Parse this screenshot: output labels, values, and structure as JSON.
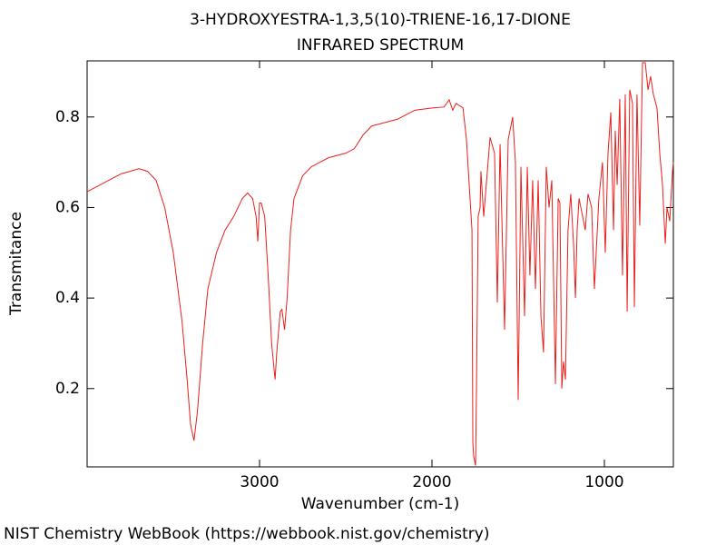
{
  "chart_data": {
    "type": "line",
    "title": "3-HYDROXYESTRA-1,3,5(10)-TRIENE-16,17-DIONE",
    "subtitle": "INFRARED SPECTRUM",
    "x_label": "Wavenumber (cm-1)",
    "y_label": "Transmitance",
    "source": "NIST Chemistry WebBook (https://webbook.nist.gov/chemistry)",
    "color": "#e8201c",
    "xlim": [
      4000,
      600
    ],
    "ylim": [
      0.027,
      0.924
    ],
    "xticks": [
      3000,
      2000,
      1000
    ],
    "yticks": [
      0.2,
      0.4,
      0.6,
      0.8
    ],
    "x": [
      4000,
      3900,
      3800,
      3750,
      3700,
      3650,
      3600,
      3550,
      3500,
      3450,
      3420,
      3400,
      3380,
      3360,
      3330,
      3300,
      3250,
      3200,
      3150,
      3100,
      3070,
      3040,
      3020,
      3010,
      3000,
      2990,
      2970,
      2950,
      2930,
      2910,
      2900,
      2880,
      2870,
      2855,
      2840,
      2820,
      2800,
      2750,
      2700,
      2600,
      2500,
      2450,
      2400,
      2350,
      2300,
      2200,
      2100,
      2000,
      1930,
      1900,
      1880,
      1860,
      1820,
      1800,
      1768,
      1763,
      1758,
      1747,
      1742,
      1732,
      1721,
      1716,
      1700,
      1663,
      1637,
      1621,
      1605,
      1579,
      1558,
      1532,
      1516,
      1500,
      1484,
      1463,
      1447,
      1432,
      1416,
      1400,
      1384,
      1368,
      1353,
      1337,
      1321,
      1305,
      1284,
      1268,
      1258,
      1247,
      1237,
      1226,
      1211,
      1195,
      1179,
      1168,
      1158,
      1147,
      1126,
      1111,
      1095,
      1074,
      1058,
      1032,
      1011,
      995,
      979,
      963,
      947,
      937,
      926,
      911,
      895,
      879,
      868,
      853,
      837,
      826,
      811,
      795,
      779,
      763,
      747,
      732,
      716,
      695,
      679,
      663,
      647,
      637,
      621,
      605,
      600
    ],
    "values": [
      0.635,
      0.655,
      0.675,
      0.68,
      0.686,
      0.68,
      0.66,
      0.6,
      0.5,
      0.35,
      0.22,
      0.12,
      0.085,
      0.15,
      0.3,
      0.42,
      0.5,
      0.55,
      0.58,
      0.62,
      0.632,
      0.62,
      0.58,
      0.525,
      0.61,
      0.61,
      0.58,
      0.45,
      0.3,
      0.22,
      0.28,
      0.37,
      0.375,
      0.33,
      0.4,
      0.55,
      0.62,
      0.67,
      0.69,
      0.71,
      0.72,
      0.73,
      0.76,
      0.78,
      0.785,
      0.795,
      0.815,
      0.82,
      0.822,
      0.838,
      0.815,
      0.83,
      0.82,
      0.75,
      0.55,
      0.08,
      0.05,
      0.03,
      0.2,
      0.58,
      0.6,
      0.68,
      0.58,
      0.755,
      0.72,
      0.39,
      0.74,
      0.33,
      0.75,
      0.8,
      0.7,
      0.175,
      0.69,
      0.36,
      0.69,
      0.45,
      0.66,
      0.42,
      0.66,
      0.36,
      0.28,
      0.69,
      0.6,
      0.66,
      0.21,
      0.62,
      0.61,
      0.2,
      0.26,
      0.22,
      0.55,
      0.63,
      0.52,
      0.4,
      0.55,
      0.62,
      0.58,
      0.55,
      0.63,
      0.6,
      0.42,
      0.62,
      0.7,
      0.5,
      0.72,
      0.81,
      0.55,
      0.77,
      0.65,
      0.84,
      0.45,
      0.85,
      0.37,
      0.86,
      0.83,
      0.38,
      0.85,
      0.56,
      0.92,
      0.92,
      0.86,
      0.89,
      0.85,
      0.82,
      0.72,
      0.65,
      0.52,
      0.6,
      0.57,
      0.68,
      0.7
    ]
  }
}
